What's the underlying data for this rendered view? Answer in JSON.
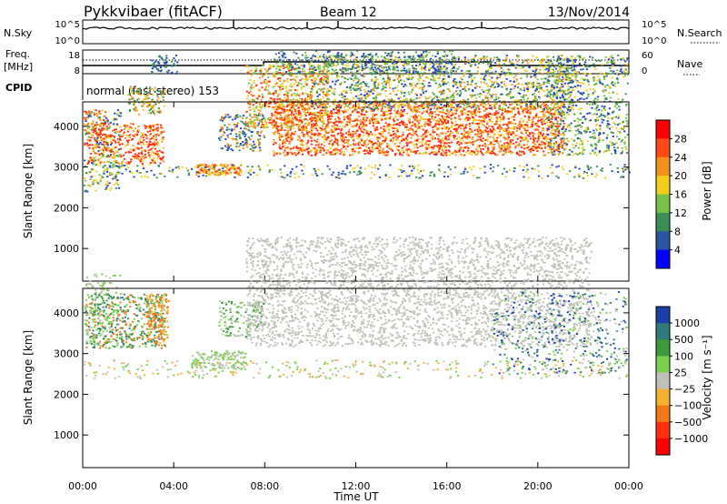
{
  "header": {
    "station": "Pykkvibaer (fitACF)",
    "beam": "Beam 12",
    "date": "13/Nov/2014"
  },
  "panels": {
    "nsky": {
      "left_label": "N.Sky",
      "left_ticks": [
        "10^5",
        "10^0"
      ],
      "right_ticks": [
        "10^5",
        "10^0"
      ],
      "right_label": "N.Search"
    },
    "freq": {
      "left_label_top": "Freq.",
      "left_label_bottom": "[MHz]",
      "left_ticks": [
        "18",
        "8"
      ],
      "right_ticks": [
        "60",
        "0"
      ],
      "right_label": "Nave"
    },
    "cpid": {
      "label": "CPID",
      "value": "normal (fast stereo) 153"
    }
  },
  "chart_data": [
    {
      "type": "heatmap",
      "name": "power",
      "ylabel": "Slant Range [km]",
      "yticks": [
        1000,
        2000,
        3000,
        4000
      ],
      "ylim": [
        200,
        4600
      ],
      "xticks": [
        "00:00",
        "04:00",
        "08:00",
        "12:00",
        "16:00",
        "20:00",
        "00:00"
      ],
      "xlim_hours": [
        0,
        24
      ],
      "colorbar": {
        "label": "Power [dB]",
        "ticks": [
          "4",
          "8",
          "12",
          "16",
          "20",
          "24",
          "28"
        ],
        "colors": [
          "#0000ff",
          "#2a55a0",
          "#3b8f55",
          "#78c24a",
          "#f4cc1c",
          "#f3901f",
          "#ff4a18",
          "#ff0000"
        ]
      }
    },
    {
      "type": "heatmap",
      "name": "velocity",
      "ylabel": "Slant Range [km]",
      "xlabel": "Time UT",
      "yticks": [
        1000,
        2000,
        3000,
        4000
      ],
      "ylim": [
        200,
        4600
      ],
      "xticks": [
        "00:00",
        "04:00",
        "08:00",
        "12:00",
        "16:00",
        "20:00",
        "00:00"
      ],
      "xlim_hours": [
        0,
        24
      ],
      "colorbar": {
        "label": "Velocity [m s⁻¹]",
        "ticks": [
          "1000",
          "500",
          "100",
          "25",
          "−25",
          "−100",
          "−500",
          "−1000"
        ],
        "colors": [
          "#1b3fa8",
          "#2f7a7a",
          "#3a9a3a",
          "#7bd04a",
          "#c0c0b8",
          "#f4b030",
          "#f07818",
          "#ff3010",
          "#ff0000"
        ]
      }
    }
  ]
}
